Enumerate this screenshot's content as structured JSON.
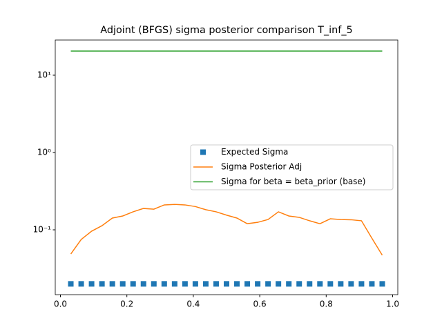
{
  "chart_data": {
    "type": "line",
    "title": "Adjoint (BFGS) sigma posterior comparison T_inf_5",
    "x": [
      0.03125,
      0.0625,
      0.09375,
      0.125,
      0.15625,
      0.1875,
      0.21875,
      0.25,
      0.28125,
      0.3125,
      0.34375,
      0.375,
      0.40625,
      0.4375,
      0.46875,
      0.5,
      0.53125,
      0.5625,
      0.59375,
      0.625,
      0.65625,
      0.6875,
      0.71875,
      0.75,
      0.78125,
      0.8125,
      0.84375,
      0.875,
      0.90625,
      0.9375,
      0.96875
    ],
    "series": [
      {
        "name": "Expected Sigma",
        "color": "#1f77b4",
        "mode": "markers",
        "values": [
          0.02,
          0.02,
          0.02,
          0.02,
          0.02,
          0.02,
          0.02,
          0.02,
          0.02,
          0.02,
          0.02,
          0.02,
          0.02,
          0.02,
          0.02,
          0.02,
          0.02,
          0.02,
          0.02,
          0.02,
          0.02,
          0.02,
          0.02,
          0.02,
          0.02,
          0.02,
          0.02,
          0.02,
          0.02,
          0.02,
          0.02
        ]
      },
      {
        "name": "Sigma Posterior Adj",
        "color": "#ff7f0e",
        "mode": "line",
        "values": [
          0.0487,
          0.075,
          0.096,
          0.113,
          0.142,
          0.151,
          0.171,
          0.189,
          0.185,
          0.21,
          0.213,
          0.21,
          0.2,
          0.182,
          0.171,
          0.155,
          0.142,
          0.12,
          0.125,
          0.136,
          0.171,
          0.151,
          0.145,
          0.131,
          0.12,
          0.139,
          0.136,
          0.135,
          0.131,
          0.078,
          0.047
        ]
      },
      {
        "name": "Sigma for beta = beta_prior (base)",
        "color": "#2ca02c",
        "mode": "line",
        "values": [
          20.5,
          20.5,
          20.5,
          20.5,
          20.5,
          20.5,
          20.5,
          20.5,
          20.5,
          20.5,
          20.5,
          20.5,
          20.5,
          20.5,
          20.5,
          20.5,
          20.5,
          20.5,
          20.5,
          20.5,
          20.5,
          20.5,
          20.5,
          20.5,
          20.5,
          20.5,
          20.5,
          20.5,
          20.5,
          20.5,
          20.5
        ]
      }
    ],
    "xlim": [
      -0.0156,
      1.0156
    ],
    "xticks": [
      {
        "value": 0,
        "label": "0.0"
      },
      0.2,
      0.4,
      0.6,
      0.8,
      {
        "value": 1,
        "label": "1.0"
      }
    ],
    "ylim": [
      0.0145,
      28.5
    ],
    "yscale": "log",
    "yticks": [
      {
        "value": 0.1,
        "label": "10⁻¹"
      },
      {
        "value": 1,
        "label": "10⁰"
      },
      {
        "value": 10,
        "label": "10¹"
      }
    ],
    "legend": "center right"
  }
}
